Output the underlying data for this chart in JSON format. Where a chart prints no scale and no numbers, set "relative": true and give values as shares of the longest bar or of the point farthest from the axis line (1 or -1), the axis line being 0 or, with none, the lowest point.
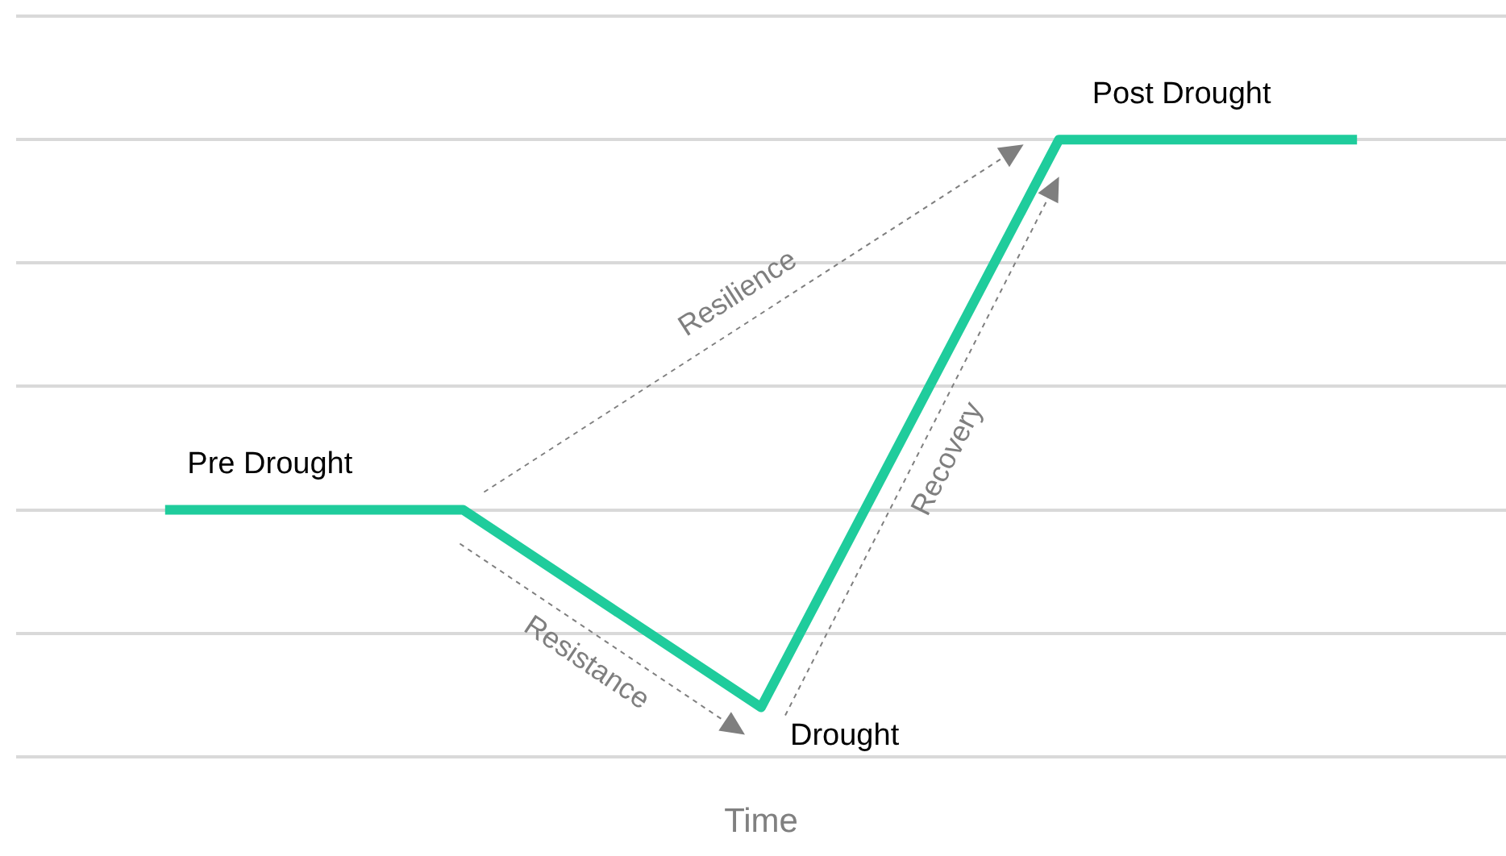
{
  "chart_data": {
    "type": "line",
    "relative": true,
    "xlabel": "Time",
    "categories": [
      null,
      null,
      null,
      null,
      null
    ],
    "series": [
      {
        "color": "#1fcc9c",
        "values": [
          0.4,
          0.4,
          0.08,
          1,
          1
        ]
      }
    ],
    "grid": "y",
    "legend": false,
    "marker": "none",
    "line_style": "solid",
    "annotations": [
      "Pre Drought",
      "Drought",
      "Post Drought",
      "Resistance",
      "Resilience",
      "Recovery"
    ]
  }
}
